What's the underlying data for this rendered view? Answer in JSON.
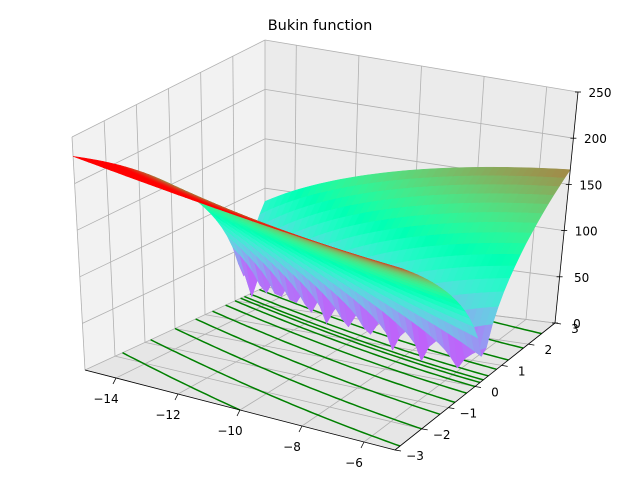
{
  "chart_data": {
    "type": "surface3d",
    "title": "Bukin function",
    "function": "100*sqrt(|y - 0.01*x^2|) + 0.01*|x + 10|",
    "x_range": [
      -15,
      -5
    ],
    "y_range": [
      -3,
      3
    ],
    "zlim": [
      0,
      250
    ],
    "x_ticks": [
      -14,
      -12,
      -10,
      -8,
      -6
    ],
    "y_ticks": [
      -3,
      -2,
      -1,
      0,
      1,
      2,
      3
    ],
    "z_ticks": [
      0,
      50,
      100,
      150,
      200,
      250
    ],
    "colormap": "rainbow",
    "contour_color": "#008000",
    "grid": true,
    "pane_color": "#f2f2f2"
  }
}
